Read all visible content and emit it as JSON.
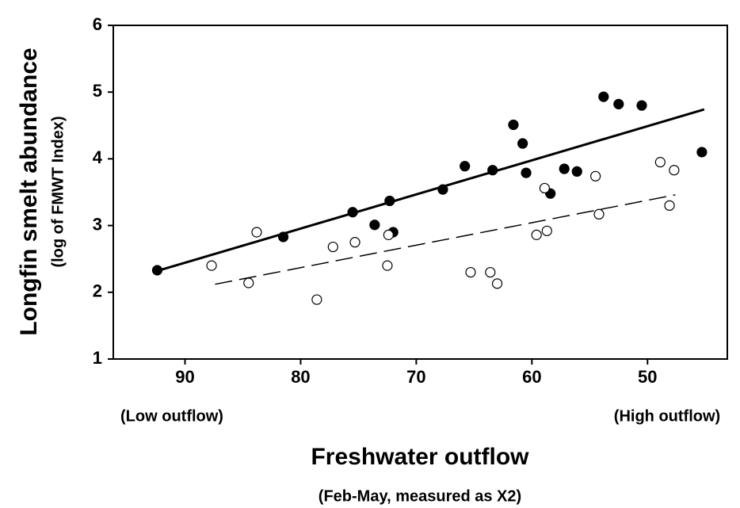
{
  "chart_data": {
    "type": "scatter",
    "y_label": "Longfin smelt abundance",
    "y_sublabel": "(log of FMWT Index)",
    "x_label": "Freshwater outflow",
    "x_sublabel": "(Feb-May, measured as X2)",
    "annotations": [
      "(Low outflow)",
      "(High outflow)"
    ],
    "xlim": [
      96.2,
      43.1
    ],
    "xticks": [
      90,
      80,
      70,
      60,
      50
    ],
    "ylim": [
      1,
      6
    ],
    "yticks": [
      1,
      2,
      3,
      4,
      5,
      6
    ],
    "grid": false,
    "series": [
      {
        "marker": "filled",
        "color": "#000000",
        "x": [
          92.4,
          81.5,
          75.5,
          73.6,
          72.3,
          72.0,
          67.7,
          65.8,
          63.4,
          61.6,
          60.8,
          60.5,
          58.4,
          57.2,
          56.1,
          53.8,
          52.5,
          50.5,
          45.3
        ],
        "values": [
          2.33,
          2.83,
          3.2,
          3.01,
          3.37,
          2.9,
          3.54,
          3.89,
          3.83,
          4.51,
          4.23,
          3.79,
          3.48,
          3.85,
          3.81,
          4.93,
          4.82,
          4.8,
          4.1
        ]
      },
      {
        "marker": "open",
        "color": "#000000",
        "x": [
          87.7,
          83.8,
          84.5,
          78.6,
          77.2,
          75.3,
          72.4,
          72.5,
          65.3,
          63.6,
          63.0,
          59.6,
          58.7,
          58.9,
          54.5,
          54.2,
          48.9,
          48.1,
          47.7
        ],
        "values": [
          2.4,
          2.9,
          2.14,
          1.89,
          2.68,
          2.75,
          2.86,
          2.4,
          2.3,
          2.3,
          2.13,
          2.86,
          2.92,
          3.56,
          3.74,
          3.17,
          3.95,
          3.3,
          3.83
        ]
      }
    ],
    "trend_lines": [
      {
        "dashed": false,
        "color": "#000000",
        "x": [
          92.4,
          45.1
        ],
        "values": [
          2.32,
          4.74
        ]
      },
      {
        "dashed": true,
        "color": "#000000",
        "x": [
          87.4,
          47.6
        ],
        "values": [
          2.12,
          3.46
        ]
      }
    ]
  }
}
